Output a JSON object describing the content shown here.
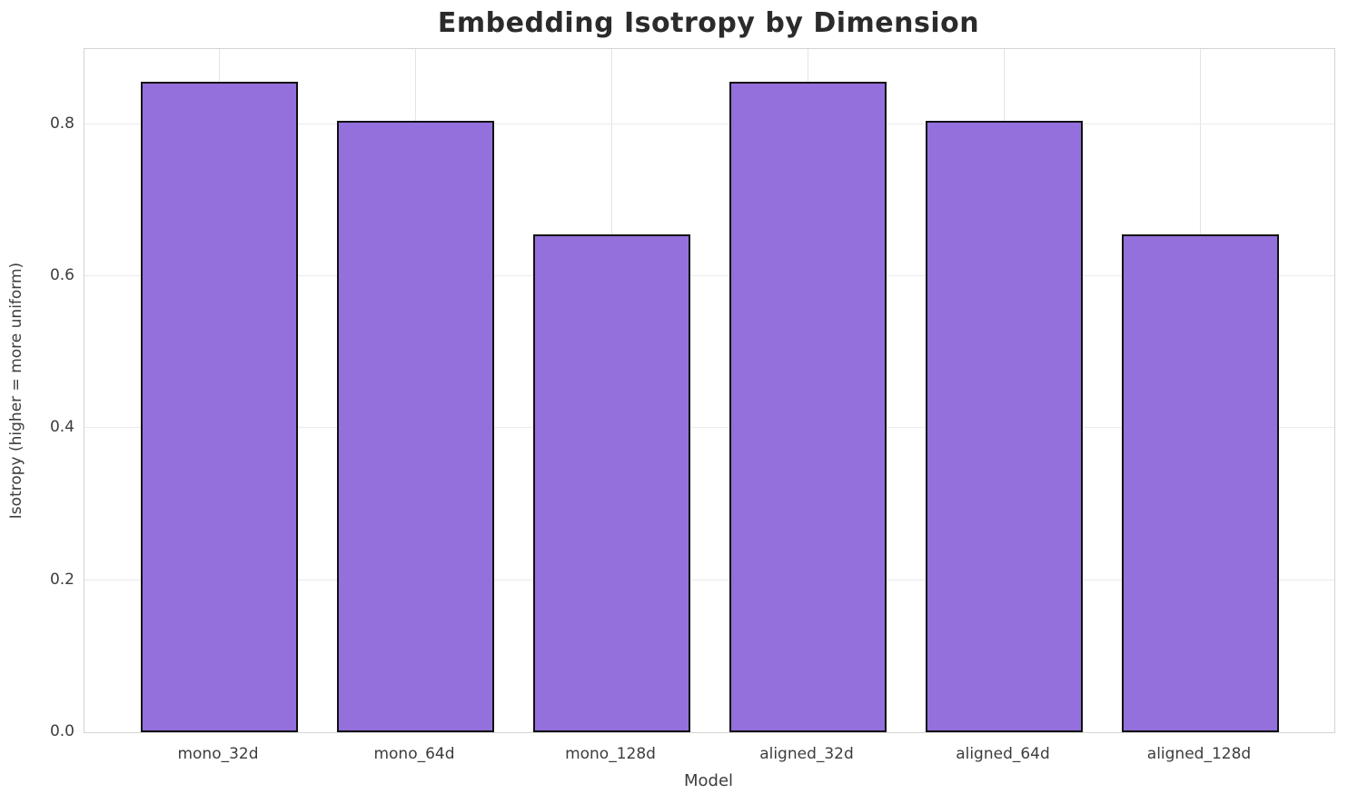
{
  "chart_data": {
    "type": "bar",
    "title": "Embedding Isotropy by Dimension",
    "xlabel": "Model",
    "ylabel": "Isotropy (higher = more uniform)",
    "categories": [
      "mono_32d",
      "mono_64d",
      "mono_128d",
      "aligned_32d",
      "aligned_64d",
      "aligned_128d"
    ],
    "values": [
      0.856,
      0.805,
      0.655,
      0.856,
      0.805,
      0.655
    ],
    "ylim": [
      0,
      0.899
    ],
    "yticks": [
      0.0,
      0.2,
      0.4,
      0.6,
      0.8
    ],
    "ytick_labels": [
      "0.0",
      "0.2",
      "0.4",
      "0.6",
      "0.8"
    ],
    "grid": true,
    "legend": null,
    "colors": {
      "bar_fill": "#9370DB",
      "bar_edge": "#111111",
      "gridline": "#ebebeb",
      "spine": "#d4d4d4",
      "title_text": "#2b2b2b",
      "tick_text": "#3d3d3d",
      "background": "#ffffff"
    }
  }
}
